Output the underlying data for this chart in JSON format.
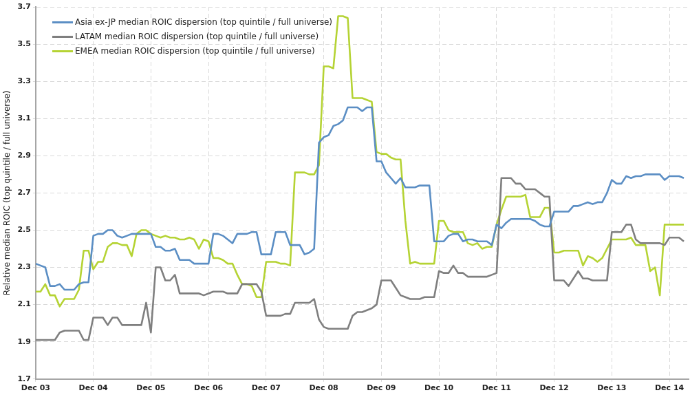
{
  "chart_data": {
    "type": "line",
    "ylabel": "Relative median ROIC (top quintile / full universe)",
    "x": [
      "2003-12",
      "2004-01",
      "2004-02",
      "2004-03",
      "2004-04",
      "2004-05",
      "2004-06",
      "2004-07",
      "2004-08",
      "2004-09",
      "2004-10",
      "2004-11",
      "2004-12",
      "2005-01",
      "2005-02",
      "2005-03",
      "2005-04",
      "2005-05",
      "2005-06",
      "2005-07",
      "2005-08",
      "2005-09",
      "2005-10",
      "2005-11",
      "2005-12",
      "2006-01",
      "2006-02",
      "2006-03",
      "2006-04",
      "2006-05",
      "2006-06",
      "2006-07",
      "2006-08",
      "2006-09",
      "2006-10",
      "2006-11",
      "2006-12",
      "2007-01",
      "2007-02",
      "2007-03",
      "2007-04",
      "2007-05",
      "2007-06",
      "2007-07",
      "2007-08",
      "2007-09",
      "2007-10",
      "2007-11",
      "2007-12",
      "2008-01",
      "2008-02",
      "2008-03",
      "2008-04",
      "2008-05",
      "2008-06",
      "2008-07",
      "2008-08",
      "2008-09",
      "2008-10",
      "2008-11",
      "2008-12",
      "2009-01",
      "2009-02",
      "2009-03",
      "2009-04",
      "2009-05",
      "2009-06",
      "2009-07",
      "2009-08",
      "2009-09",
      "2009-10",
      "2009-11",
      "2009-12",
      "2010-01",
      "2010-02",
      "2010-03",
      "2010-04",
      "2010-05",
      "2010-06",
      "2010-07",
      "2010-08",
      "2010-09",
      "2010-10",
      "2010-11",
      "2010-12",
      "2011-01",
      "2011-02",
      "2011-03",
      "2011-04",
      "2011-05",
      "2011-06",
      "2011-07",
      "2011-08",
      "2011-09",
      "2011-10",
      "2011-11",
      "2011-12",
      "2012-01",
      "2012-02",
      "2012-03",
      "2012-04",
      "2012-05",
      "2012-06",
      "2012-07",
      "2012-08",
      "2012-09",
      "2012-10",
      "2012-11",
      "2012-12",
      "2013-01",
      "2013-02",
      "2013-03",
      "2013-04",
      "2013-05",
      "2013-06",
      "2013-07",
      "2013-08",
      "2013-09",
      "2013-10",
      "2013-11",
      "2013-12",
      "2014-01",
      "2014-02",
      "2014-03",
      "2014-04",
      "2014-05",
      "2014-06",
      "2014-07",
      "2014-08",
      "2014-09",
      "2014-10",
      "2014-11",
      "2014-12",
      "2015-01",
      "2015-02",
      "2015-03"
    ],
    "series": [
      {
        "name": "Asia ex-JP median ROIC dispersion (top quintile / full universe)",
        "color": "#5b8ec4",
        "values": [
          2.32,
          2.31,
          2.3,
          2.2,
          2.2,
          2.21,
          2.18,
          2.18,
          2.18,
          2.21,
          2.22,
          2.22,
          2.47,
          2.48,
          2.48,
          2.5,
          2.5,
          2.47,
          2.46,
          2.47,
          2.48,
          2.48,
          2.48,
          2.48,
          2.48,
          2.41,
          2.41,
          2.39,
          2.39,
          2.4,
          2.34,
          2.34,
          2.34,
          2.32,
          2.32,
          2.32,
          2.32,
          2.48,
          2.48,
          2.47,
          2.45,
          2.43,
          2.48,
          2.48,
          2.48,
          2.49,
          2.49,
          2.37,
          2.37,
          2.37,
          2.49,
          2.49,
          2.49,
          2.42,
          2.42,
          2.42,
          2.37,
          2.38,
          2.4,
          2.97,
          3.0,
          3.01,
          3.06,
          3.07,
          3.09,
          3.16,
          3.16,
          3.16,
          3.14,
          3.16,
          3.16,
          2.87,
          2.87,
          2.81,
          2.78,
          2.75,
          2.78,
          2.73,
          2.73,
          2.73,
          2.74,
          2.74,
          2.74,
          2.44,
          2.44,
          2.44,
          2.47,
          2.48,
          2.48,
          2.44,
          2.45,
          2.45,
          2.44,
          2.44,
          2.44,
          2.42,
          2.53,
          2.51,
          2.54,
          2.56,
          2.56,
          2.56,
          2.56,
          2.56,
          2.55,
          2.53,
          2.52,
          2.52,
          2.6,
          2.6,
          2.6,
          2.6,
          2.63,
          2.63,
          2.64,
          2.65,
          2.64,
          2.65,
          2.65,
          2.7,
          2.77,
          2.75,
          2.75,
          2.79,
          2.78,
          2.79,
          2.79,
          2.8,
          2.8,
          2.8,
          2.8,
          2.77,
          2.79,
          2.79,
          2.79,
          2.78
        ]
      },
      {
        "name": "LATAM median ROIC dispersion (top quintile / full universe)",
        "color": "#7f7f7f",
        "values": [
          1.91,
          1.91,
          1.91,
          1.91,
          1.91,
          1.95,
          1.96,
          1.96,
          1.96,
          1.96,
          1.91,
          1.91,
          2.03,
          2.03,
          2.03,
          1.99,
          2.03,
          2.03,
          1.99,
          1.99,
          1.99,
          1.99,
          1.99,
          2.11,
          1.95,
          2.3,
          2.3,
          2.23,
          2.23,
          2.26,
          2.16,
          2.16,
          2.16,
          2.16,
          2.16,
          2.15,
          2.16,
          2.17,
          2.17,
          2.17,
          2.16,
          2.16,
          2.16,
          2.21,
          2.21,
          2.21,
          2.21,
          2.17,
          2.04,
          2.04,
          2.04,
          2.04,
          2.05,
          2.05,
          2.11,
          2.11,
          2.11,
          2.11,
          2.13,
          2.02,
          1.98,
          1.97,
          1.97,
          1.97,
          1.97,
          1.97,
          2.04,
          2.06,
          2.06,
          2.07,
          2.08,
          2.1,
          2.23,
          2.23,
          2.23,
          2.19,
          2.15,
          2.14,
          2.13,
          2.13,
          2.13,
          2.14,
          2.14,
          2.14,
          2.28,
          2.27,
          2.27,
          2.31,
          2.27,
          2.27,
          2.25,
          2.25,
          2.25,
          2.25,
          2.25,
          2.26,
          2.27,
          2.78,
          2.78,
          2.78,
          2.75,
          2.75,
          2.72,
          2.72,
          2.72,
          2.7,
          2.68,
          2.68,
          2.23,
          2.23,
          2.23,
          2.2,
          2.24,
          2.28,
          2.24,
          2.24,
          2.23,
          2.23,
          2.23,
          2.23,
          2.49,
          2.49,
          2.49,
          2.53,
          2.53,
          2.45,
          2.43,
          2.43,
          2.43,
          2.43,
          2.43,
          2.42,
          2.46,
          2.46,
          2.46,
          2.44
        ]
      },
      {
        "name": "EMEA median ROIC dispersion (top quintile / full universe)",
        "color": "#b5d334",
        "values": [
          2.17,
          2.17,
          2.21,
          2.15,
          2.15,
          2.09,
          2.13,
          2.13,
          2.13,
          2.18,
          2.39,
          2.39,
          2.29,
          2.33,
          2.33,
          2.41,
          2.43,
          2.43,
          2.42,
          2.42,
          2.36,
          2.48,
          2.5,
          2.5,
          2.48,
          2.47,
          2.46,
          2.47,
          2.46,
          2.46,
          2.45,
          2.45,
          2.46,
          2.45,
          2.4,
          2.45,
          2.44,
          2.35,
          2.35,
          2.34,
          2.32,
          2.32,
          2.26,
          2.21,
          2.21,
          2.2,
          2.14,
          2.14,
          2.33,
          2.33,
          2.33,
          2.32,
          2.32,
          2.31,
          2.81,
          2.81,
          2.81,
          2.8,
          2.8,
          2.85,
          3.38,
          3.38,
          3.37,
          3.65,
          3.65,
          3.64,
          3.21,
          3.21,
          3.21,
          3.2,
          3.19,
          2.92,
          2.91,
          2.91,
          2.89,
          2.88,
          2.88,
          2.55,
          2.32,
          2.33,
          2.32,
          2.32,
          2.32,
          2.32,
          2.55,
          2.55,
          2.5,
          2.49,
          2.49,
          2.49,
          2.43,
          2.42,
          2.43,
          2.4,
          2.41,
          2.41,
          2.53,
          2.61,
          2.68,
          2.68,
          2.68,
          2.68,
          2.69,
          2.57,
          2.57,
          2.57,
          2.62,
          2.62,
          2.38,
          2.38,
          2.39,
          2.39,
          2.39,
          2.39,
          2.31,
          2.36,
          2.35,
          2.33,
          2.35,
          2.4,
          2.45,
          2.45,
          2.45,
          2.45,
          2.46,
          2.42,
          2.42,
          2.42,
          2.28,
          2.3,
          2.15,
          2.53,
          2.53,
          2.53,
          2.53,
          2.53
        ]
      }
    ],
    "xlim": [
      "2003-12",
      "2015-04"
    ],
    "xticks": [
      {
        "value": "2003-12",
        "label": "Dec 03"
      },
      {
        "value": "2004-12",
        "label": "Dec 04"
      },
      {
        "value": "2005-12",
        "label": "Dec 05"
      },
      {
        "value": "2006-12",
        "label": "Dec 06"
      },
      {
        "value": "2007-12",
        "label": "Dec 07"
      },
      {
        "value": "2008-12",
        "label": "Dec 08"
      },
      {
        "value": "2009-12",
        "label": "Dec 09"
      },
      {
        "value": "2010-12",
        "label": "Dec 10"
      },
      {
        "value": "2011-12",
        "label": "Dec 11"
      },
      {
        "value": "2012-12",
        "label": "Dec 12"
      },
      {
        "value": "2013-12",
        "label": "Dec 13"
      },
      {
        "value": "2014-12",
        "label": "Dec 14"
      }
    ],
    "ylim": [
      1.7,
      3.7
    ],
    "yticks": [
      {
        "value": 1.7,
        "label": "1.7"
      },
      {
        "value": 1.9,
        "label": "1.9"
      },
      {
        "value": 2.1,
        "label": "2.1"
      },
      {
        "value": 2.3,
        "label": "2.3"
      },
      {
        "value": 2.5,
        "label": "2.5"
      },
      {
        "value": 2.7,
        "label": "2.7"
      },
      {
        "value": 2.9,
        "label": "2.9"
      },
      {
        "value": 3.1,
        "label": "3.1"
      },
      {
        "value": 3.3,
        "label": "3.3"
      },
      {
        "value": 3.5,
        "label": "3.5"
      },
      {
        "value": 3.7,
        "label": "3.7"
      }
    ],
    "grid": true,
    "legend": "top left",
    "marker": "none",
    "line_style": "solid"
  }
}
